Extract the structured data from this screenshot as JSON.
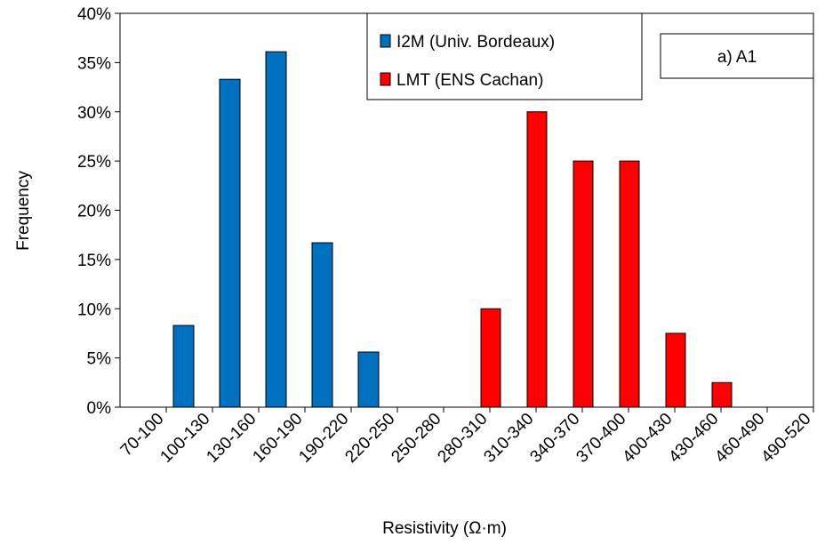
{
  "chart_data": {
    "type": "bar",
    "x_label": "Resistivity (Ω·m)",
    "y_label": "Frequency",
    "annotation": "a)  A1",
    "categories": [
      "70-100",
      "100-130",
      "130-160",
      "160-190",
      "190-220",
      "220-250",
      "250-280",
      "280-310",
      "310-340",
      "340-370",
      "370-400",
      "400-430",
      "430-460",
      "460-490",
      "490-520"
    ],
    "series": [
      {
        "name": "I2M (Univ. Bordeaux)",
        "color": "#0070c0",
        "values": [
          0,
          8.3,
          33.3,
          36.1,
          16.7,
          5.6,
          0,
          0,
          0,
          0,
          0,
          0,
          0,
          0,
          0
        ]
      },
      {
        "name": "LMT (ENS Cachan)",
        "color": "#ff0000",
        "values": [
          0,
          0,
          0,
          0,
          0,
          0,
          0,
          10,
          30,
          25,
          25,
          7.5,
          2.5,
          0,
          0
        ]
      }
    ],
    "ylim": [
      0,
      40
    ],
    "yticks": [
      {
        "value": 0,
        "label": "0%"
      },
      {
        "value": 5,
        "label": "5%"
      },
      {
        "value": 10,
        "label": "10%"
      },
      {
        "value": 15,
        "label": "15%"
      },
      {
        "value": 20,
        "label": "20%"
      },
      {
        "value": 25,
        "label": "25%"
      },
      {
        "value": 30,
        "label": "30%"
      },
      {
        "value": 35,
        "label": "35%"
      },
      {
        "value": 40,
        "label": "40%"
      }
    ]
  }
}
